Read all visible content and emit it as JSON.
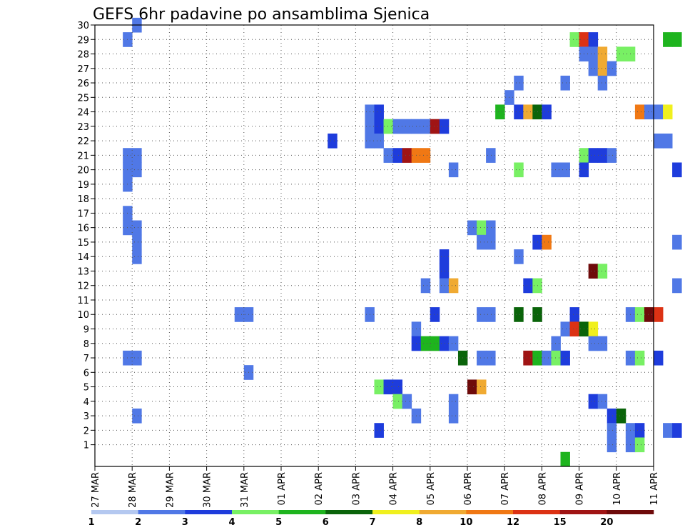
{
  "chart_data": {
    "type": "heatmap",
    "title": "GEFS 6hr padavine po ansamblima Sjenica",
    "xlabel": "",
    "ylabel": "",
    "x_ticks": [
      "27 MAR",
      "28 MAR",
      "29 MAR",
      "30 MAR",
      "31 MAR",
      "01 APR",
      "02 APR",
      "03 APR",
      "04 APR",
      "05 APR",
      "06 APR",
      "07 APR",
      "08 APR",
      "09 APR",
      "10 APR",
      "11 APR"
    ],
    "y_ticks": [
      1,
      2,
      3,
      4,
      5,
      6,
      7,
      8,
      9,
      10,
      11,
      12,
      13,
      14,
      15,
      16,
      17,
      18,
      19,
      20,
      21,
      22,
      23,
      24,
      25,
      26,
      27,
      28,
      29,
      30
    ],
    "x_unit": "6-hour step from 27 MAR 00Z (4 steps per day)",
    "y_unit": "ensemble member",
    "grid": true,
    "colorbar": {
      "labels": [
        "1",
        "2",
        "3",
        "4",
        "5",
        "6",
        "7",
        "8",
        "10",
        "12",
        "15",
        "20"
      ],
      "colors": [
        "#b4c8f0",
        "#5078e6",
        "#1e3cdc",
        "#78f064",
        "#1eb41e",
        "#0a640a",
        "#f0f01e",
        "#f0aa32",
        "#f07814",
        "#dc3214",
        "#a01414",
        "#6e0a0a"
      ]
    },
    "cells": [
      [
        4,
        30,
        1
      ],
      [
        3,
        29,
        1
      ],
      [
        3,
        20,
        1
      ],
      [
        4,
        20,
        1
      ],
      [
        3,
        21,
        1
      ],
      [
        4,
        21,
        1
      ],
      [
        3,
        19,
        1
      ],
      [
        3,
        17,
        1
      ],
      [
        3,
        16,
        1
      ],
      [
        4,
        16,
        1
      ],
      [
        4,
        15,
        1
      ],
      [
        4,
        14,
        1
      ],
      [
        3,
        7,
        1
      ],
      [
        4,
        7,
        1
      ],
      [
        4,
        3,
        1
      ],
      [
        15,
        10,
        1
      ],
      [
        16,
        10,
        1
      ],
      [
        16,
        6,
        1
      ],
      [
        25,
        22,
        2
      ],
      [
        29,
        24,
        1
      ],
      [
        29,
        23,
        1
      ],
      [
        29,
        22,
        1
      ],
      [
        30,
        24,
        2
      ],
      [
        30,
        23,
        2
      ],
      [
        30,
        22,
        1
      ],
      [
        31,
        23,
        3
      ],
      [
        32,
        23,
        1
      ],
      [
        33,
        23,
        1
      ],
      [
        34,
        23,
        1
      ],
      [
        35,
        23,
        1
      ],
      [
        36,
        23,
        10
      ],
      [
        37,
        23,
        2
      ],
      [
        31,
        21,
        1
      ],
      [
        32,
        21,
        2
      ],
      [
        33,
        21,
        10
      ],
      [
        34,
        21,
        8
      ],
      [
        35,
        21,
        8
      ],
      [
        38,
        20,
        1
      ],
      [
        29,
        10,
        1
      ],
      [
        30,
        5,
        3
      ],
      [
        31,
        5,
        2
      ],
      [
        32,
        5,
        2
      ],
      [
        30,
        2,
        2
      ],
      [
        32,
        4,
        3
      ],
      [
        33,
        4,
        1
      ],
      [
        34,
        3,
        1
      ],
      [
        34,
        9,
        1
      ],
      [
        34,
        8,
        2
      ],
      [
        35,
        8,
        4
      ],
      [
        36,
        8,
        4
      ],
      [
        37,
        8,
        2
      ],
      [
        38,
        8,
        1
      ],
      [
        35,
        12,
        1
      ],
      [
        36,
        10,
        2
      ],
      [
        37,
        14,
        2
      ],
      [
        37,
        13,
        2
      ],
      [
        37,
        12,
        1
      ],
      [
        38,
        12,
        7
      ],
      [
        38,
        4,
        1
      ],
      [
        38,
        3,
        1
      ],
      [
        39,
        7,
        5
      ],
      [
        40,
        16,
        1
      ],
      [
        41,
        16,
        3
      ],
      [
        42,
        16,
        1
      ],
      [
        41,
        15,
        1
      ],
      [
        42,
        15,
        1
      ],
      [
        40,
        5,
        11
      ],
      [
        41,
        5,
        7
      ],
      [
        41,
        10,
        1
      ],
      [
        42,
        10,
        1
      ],
      [
        41,
        7,
        1
      ],
      [
        42,
        7,
        1
      ],
      [
        42,
        21,
        1
      ],
      [
        43,
        24,
        4
      ],
      [
        44,
        25,
        1
      ],
      [
        45,
        26,
        1
      ],
      [
        45,
        24,
        2
      ],
      [
        45,
        20,
        3
      ],
      [
        45,
        14,
        1
      ],
      [
        45,
        10,
        5
      ],
      [
        46,
        24,
        7
      ],
      [
        46,
        12,
        2
      ],
      [
        46,
        7,
        10
      ],
      [
        47,
        24,
        5
      ],
      [
        47,
        15,
        2
      ],
      [
        47,
        12,
        3
      ],
      [
        47,
        7,
        4
      ],
      [
        47,
        10,
        5
      ],
      [
        48,
        24,
        2
      ],
      [
        48,
        15,
        8
      ],
      [
        48,
        7,
        1
      ],
      [
        49,
        20,
        1
      ],
      [
        50,
        20,
        1
      ],
      [
        49,
        8,
        1
      ],
      [
        49,
        7,
        3
      ],
      [
        50,
        7,
        2
      ],
      [
        50,
        26,
        1
      ],
      [
        50,
        9,
        1
      ],
      [
        50,
        0,
        4
      ],
      [
        51,
        10,
        2
      ],
      [
        51,
        9,
        9
      ],
      [
        51,
        29,
        3
      ],
      [
        52,
        29,
        9
      ],
      [
        53,
        29,
        2
      ],
      [
        52,
        28,
        1
      ],
      [
        53,
        28,
        1
      ],
      [
        54,
        28,
        7
      ],
      [
        53,
        27,
        1
      ],
      [
        54,
        27,
        7
      ],
      [
        55,
        27,
        1
      ],
      [
        54,
        26,
        1
      ],
      [
        53,
        13,
        11
      ],
      [
        54,
        13,
        3
      ],
      [
        52,
        9,
        5
      ],
      [
        53,
        9,
        6
      ],
      [
        52,
        21,
        3
      ],
      [
        53,
        21,
        2
      ],
      [
        54,
        21,
        2
      ],
      [
        55,
        21,
        1
      ],
      [
        52,
        20,
        2
      ],
      [
        53,
        8,
        1
      ],
      [
        54,
        8,
        1
      ],
      [
        53,
        4,
        2
      ],
      [
        54,
        4,
        1
      ],
      [
        55,
        3,
        2
      ],
      [
        56,
        3,
        5
      ],
      [
        56,
        28,
        3
      ],
      [
        57,
        28,
        3
      ],
      [
        55,
        2,
        1
      ],
      [
        55,
        1,
        1
      ],
      [
        57,
        10,
        1
      ],
      [
        57,
        2,
        1
      ],
      [
        57,
        1,
        1
      ],
      [
        58,
        2,
        2
      ],
      [
        58,
        1,
        3
      ],
      [
        57,
        7,
        1
      ],
      [
        58,
        7,
        3
      ],
      [
        58,
        10,
        3
      ],
      [
        59,
        10,
        11
      ],
      [
        60,
        10,
        9
      ],
      [
        58,
        24,
        8
      ],
      [
        59,
        24,
        1
      ],
      [
        60,
        24,
        1
      ],
      [
        61,
        24,
        6
      ],
      [
        60,
        22,
        1
      ],
      [
        61,
        22,
        1
      ],
      [
        60,
        7,
        2
      ],
      [
        61,
        29,
        4
      ],
      [
        62,
        29,
        4
      ],
      [
        61,
        2,
        1
      ],
      [
        62,
        2,
        2
      ],
      [
        62,
        20,
        2
      ],
      [
        62,
        15,
        1
      ],
      [
        62,
        12,
        1
      ]
    ]
  }
}
